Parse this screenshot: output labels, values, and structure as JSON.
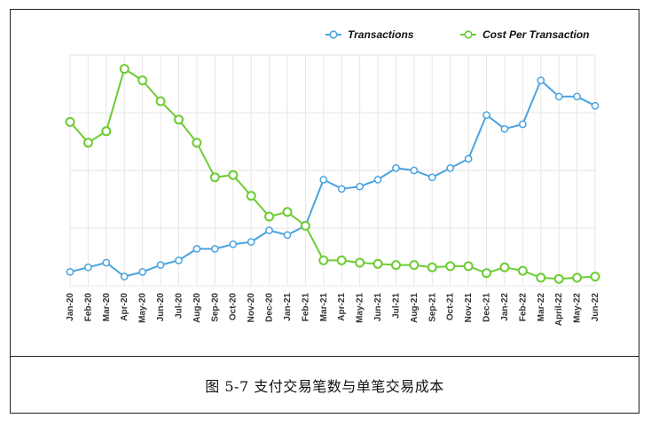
{
  "figure": {
    "caption": "图 5-7 支付交易笔数与单笔交易成本"
  },
  "chart_data": {
    "type": "line",
    "title": "",
    "xlabel": "",
    "ylabel": "",
    "ylim": [
      0,
      100
    ],
    "grid": true,
    "legend_position": "top-right",
    "categories": [
      "Jan-20",
      "Feb-20",
      "Mar-20",
      "Apr-20",
      "May-20",
      "Jun-20",
      "Jul-20",
      "Aug-20",
      "Sep-20",
      "Oct-20",
      "Nov-20",
      "Dec-20",
      "Jan-21",
      "Feb-21",
      "Mar-21",
      "Apr-21",
      "May-21",
      "Jun-21",
      "Jul-21",
      "Aug-21",
      "Sep-21",
      "Oct-21",
      "Nov-21",
      "Dec-21",
      "Jan-22",
      "Feb-22",
      "Mar-22",
      "April-22",
      "May-22",
      "Jun-22"
    ],
    "series": [
      {
        "name": "Transactions",
        "color": "#4aa3df",
        "values": [
          6,
          8,
          10,
          4,
          6,
          9,
          11,
          16,
          16,
          18,
          19,
          24,
          22,
          26,
          46,
          42,
          43,
          46,
          51,
          50,
          47,
          51,
          55,
          74,
          68,
          70,
          89,
          82,
          82,
          78
        ]
      },
      {
        "name": "Cost Per Transaction",
        "color": "#6ccc33",
        "values": [
          71,
          62,
          67,
          94,
          89,
          80,
          72,
          62,
          47,
          48,
          39,
          30,
          32,
          26,
          11,
          11,
          10,
          9.5,
          9,
          9,
          8,
          8.5,
          8.5,
          5.5,
          8,
          6.5,
          3.5,
          3,
          3.5,
          4
        ]
      }
    ]
  }
}
